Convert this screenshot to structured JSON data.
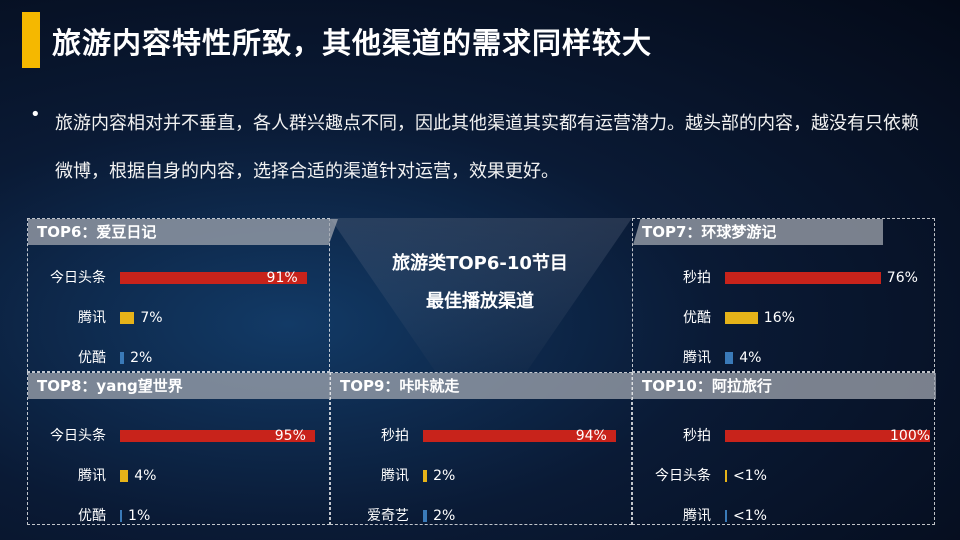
{
  "title": "旅游内容特性所致，其他渠道的需求同样较大",
  "bullet": "•",
  "paragraph": "旅游内容相对并不垂直，各人群兴趣点不同，因此其他渠道其实都有运营潜力。越头部的内容，越没有只依赖微博，根据自身的内容，选择合适的渠道针对运营，效果更好。",
  "center": {
    "line1": "旅游类TOP6-10节目",
    "line2": "最佳播放渠道"
  },
  "colors": {
    "accent": "#f5b800",
    "bar1": "#c8231b",
    "bar2": "#e6b319",
    "bar3": "#3a7ab8"
  },
  "panels": [
    {
      "header": "TOP6：爱豆日记",
      "rows": [
        {
          "label": "今日头条",
          "value": 91,
          "text": "91%"
        },
        {
          "label": "腾讯",
          "value": 7,
          "text": "7%"
        },
        {
          "label": "优酷",
          "value": 2,
          "text": "2%"
        }
      ]
    },
    {
      "header": "TOP7：环球梦游记",
      "rows": [
        {
          "label": "秒拍",
          "value": 76,
          "text": "76%"
        },
        {
          "label": "优酷",
          "value": 16,
          "text": "16%"
        },
        {
          "label": "腾讯",
          "value": 4,
          "text": "4%"
        }
      ]
    },
    {
      "header": "TOP8：yang望世界",
      "rows": [
        {
          "label": "今日头条",
          "value": 95,
          "text": "95%"
        },
        {
          "label": "腾讯",
          "value": 4,
          "text": "4%"
        },
        {
          "label": "优酷",
          "value": 1,
          "text": "1%"
        }
      ]
    },
    {
      "header": "TOP9：咔咔就走",
      "rows": [
        {
          "label": "秒拍",
          "value": 94,
          "text": "94%"
        },
        {
          "label": "腾讯",
          "value": 2,
          "text": "2%"
        },
        {
          "label": "爱奇艺",
          "value": 2,
          "text": "2%"
        }
      ]
    },
    {
      "header": "TOP10：阿拉旅行",
      "rows": [
        {
          "label": "秒拍",
          "value": 100,
          "text": "100%"
        },
        {
          "label": "今日头条",
          "value": 0.5,
          "text": "<1%"
        },
        {
          "label": "腾讯",
          "value": 0.5,
          "text": "<1%"
        }
      ]
    }
  ]
}
